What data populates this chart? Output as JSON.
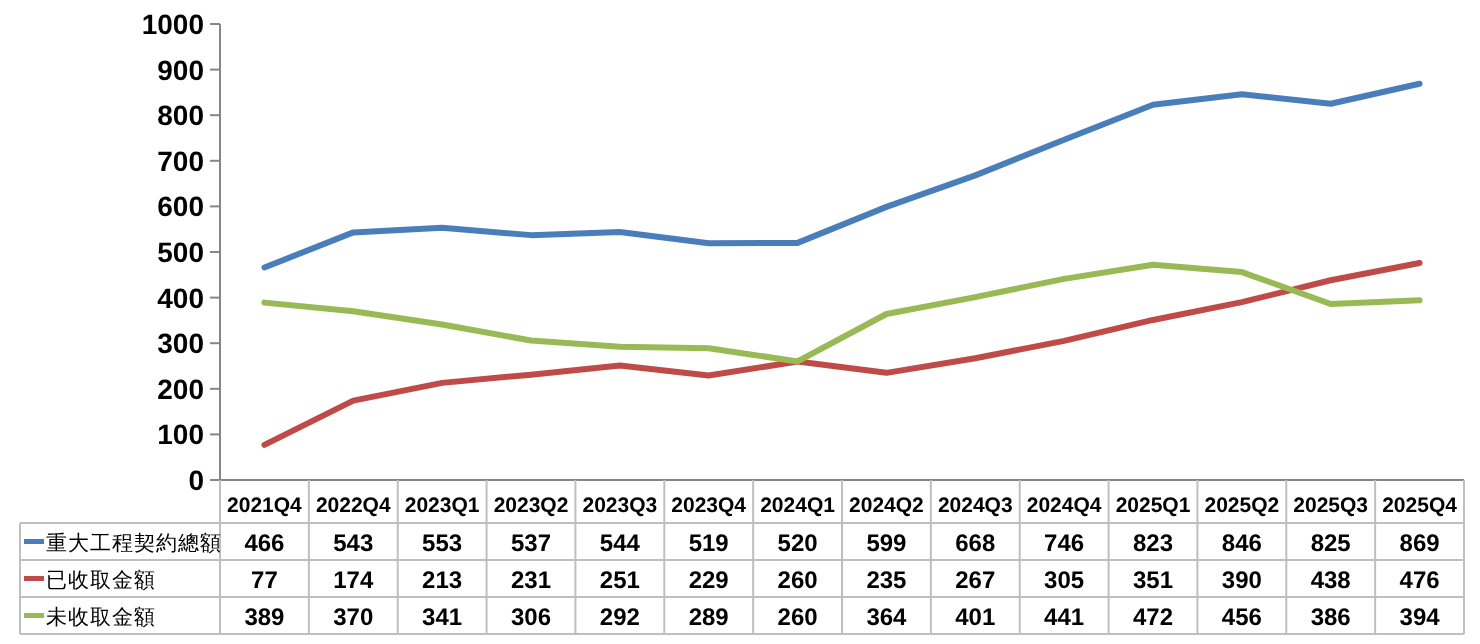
{
  "chart_data": {
    "type": "line",
    "categories": [
      "2021Q4",
      "2022Q4",
      "2023Q1",
      "2023Q2",
      "2023Q3",
      "2023Q4",
      "2024Q1",
      "2024Q2",
      "2024Q3",
      "2024Q4",
      "2025Q1",
      "2025Q2",
      "2025Q3",
      "2025Q4"
    ],
    "series": [
      {
        "name": "重大工程契約總額",
        "color": "#4a7ebb",
        "values": [
          466,
          543,
          553,
          537,
          544,
          519,
          520,
          599,
          668,
          746,
          823,
          846,
          825,
          869
        ]
      },
      {
        "name": "已收取金額",
        "color": "#be4b48",
        "values": [
          77,
          174,
          213,
          231,
          251,
          229,
          260,
          235,
          267,
          305,
          351,
          390,
          438,
          476
        ]
      },
      {
        "name": "未收取金額",
        "color": "#98b954",
        "values": [
          389,
          370,
          341,
          306,
          292,
          289,
          260,
          364,
          401,
          441,
          472,
          456,
          386,
          394
        ]
      }
    ],
    "ylim": [
      0,
      1000
    ],
    "yticks": [
      0,
      100,
      200,
      300,
      400,
      500,
      600,
      700,
      800,
      900,
      1000
    ],
    "grid": false,
    "data_labels": true,
    "marker": "none",
    "line_style": "solid",
    "legend": "bottom"
  }
}
